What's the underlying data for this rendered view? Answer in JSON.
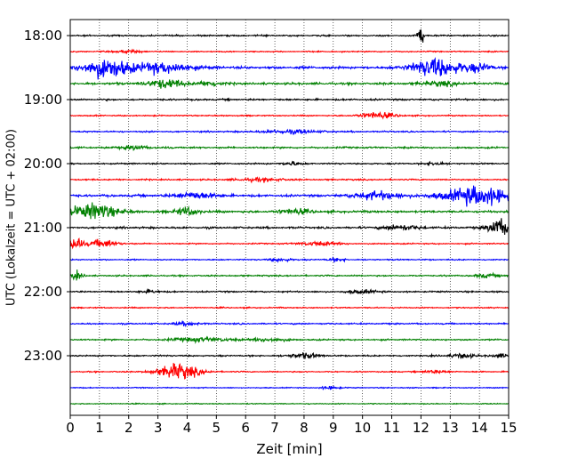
{
  "chart_data": {
    "type": "line",
    "title": "",
    "xlabel": "Zeit  [min]",
    "ylabel": "UTC (Lokalzeit = UTC + 02:00)",
    "xlim": [
      0,
      15
    ],
    "x_ticks": [
      0,
      1,
      2,
      3,
      4,
      5,
      6,
      7,
      8,
      9,
      10,
      11,
      12,
      13,
      14,
      15
    ],
    "x_tick_labels": [
      "0",
      "1",
      "2",
      "3",
      "4",
      "5",
      "6",
      "7",
      "8",
      "9",
      "10",
      "11",
      "12",
      "13",
      "14",
      "15"
    ],
    "y_ticks": [
      {
        "label": "18:00",
        "minutes": 0
      },
      {
        "label": "19:00",
        "minutes": 60
      },
      {
        "label": "20:00",
        "minutes": 120
      },
      {
        "label": "21:00",
        "minutes": 180
      },
      {
        "label": "22:00",
        "minutes": 240
      },
      {
        "label": "23:00",
        "minutes": 300
      }
    ],
    "trace_interval_minutes": 15,
    "vertical_grid": "dotted",
    "trace_colors": [
      "#000000",
      "#ff0000",
      "#0000ff",
      "#008000"
    ],
    "traces": [
      {
        "start": "18:00",
        "color": "#000000",
        "noise": 0.6,
        "events": [
          {
            "x": 12.0,
            "amp": 5.5,
            "width": 0.12
          }
        ]
      },
      {
        "start": "18:15",
        "color": "#ff0000",
        "noise": 0.5,
        "events": [
          {
            "x": 2.0,
            "amp": 1.2,
            "width": 0.4
          }
        ]
      },
      {
        "start": "18:30",
        "color": "#0000ff",
        "noise": 1.0,
        "events": [
          {
            "x": 1.2,
            "amp": 7.5,
            "width": 0.8
          },
          {
            "x": 3.2,
            "amp": 4.0,
            "width": 1.0
          },
          {
            "x": 12.5,
            "amp": 7.0,
            "width": 0.8
          },
          {
            "x": 13.9,
            "amp": 3.0,
            "width": 0.5
          }
        ]
      },
      {
        "start": "18:45",
        "color": "#008000",
        "noise": 0.9,
        "events": [
          {
            "x": 3.3,
            "amp": 3.5,
            "width": 0.6
          },
          {
            "x": 4.8,
            "amp": 2.0,
            "width": 0.4
          },
          {
            "x": 12.7,
            "amp": 1.5,
            "width": 0.6
          }
        ]
      },
      {
        "start": "19:00",
        "color": "#000000",
        "noise": 0.7,
        "events": []
      },
      {
        "start": "19:15",
        "color": "#ff0000",
        "noise": 0.5,
        "events": [
          {
            "x": 10.5,
            "amp": 2.5,
            "width": 0.6
          }
        ]
      },
      {
        "start": "19:30",
        "color": "#0000ff",
        "noise": 0.6,
        "events": [
          {
            "x": 7.5,
            "amp": 1.3,
            "width": 1.0
          }
        ]
      },
      {
        "start": "19:45",
        "color": "#008000",
        "noise": 0.7,
        "events": [
          {
            "x": 2.2,
            "amp": 1.3,
            "width": 0.5
          }
        ]
      },
      {
        "start": "20:00",
        "color": "#000000",
        "noise": 0.6,
        "events": [
          {
            "x": 7.6,
            "amp": 1.5,
            "width": 0.3
          },
          {
            "x": 12.5,
            "amp": 1.5,
            "width": 0.3
          }
        ]
      },
      {
        "start": "20:15",
        "color": "#ff0000",
        "noise": 0.6,
        "events": [
          {
            "x": 6.5,
            "amp": 1.2,
            "width": 0.8
          }
        ]
      },
      {
        "start": "20:30",
        "color": "#0000ff",
        "noise": 0.9,
        "events": [
          {
            "x": 4.3,
            "amp": 2.5,
            "width": 0.7
          },
          {
            "x": 10.5,
            "amp": 3.0,
            "width": 0.8
          },
          {
            "x": 14.0,
            "amp": 7.0,
            "width": 1.2
          }
        ]
      },
      {
        "start": "20:45",
        "color": "#008000",
        "noise": 0.9,
        "events": [
          {
            "x": 0.8,
            "amp": 6.0,
            "width": 0.8
          },
          {
            "x": 4.0,
            "amp": 3.0,
            "width": 0.4
          },
          {
            "x": 7.7,
            "amp": 2.0,
            "width": 0.5
          }
        ]
      },
      {
        "start": "21:00",
        "color": "#000000",
        "noise": 0.8,
        "events": [
          {
            "x": 11.3,
            "amp": 2.0,
            "width": 0.6
          },
          {
            "x": 14.7,
            "amp": 6.5,
            "width": 0.4
          }
        ]
      },
      {
        "start": "21:15",
        "color": "#ff0000",
        "noise": 0.5,
        "events": [
          {
            "x": 0.2,
            "amp": 5.0,
            "width": 0.2
          },
          {
            "x": 1.1,
            "amp": 3.0,
            "width": 0.5
          },
          {
            "x": 8.5,
            "amp": 1.5,
            "width": 0.7
          }
        ]
      },
      {
        "start": "21:30",
        "color": "#0000ff",
        "noise": 0.5,
        "events": [
          {
            "x": 7.2,
            "amp": 1.2,
            "width": 0.4
          },
          {
            "x": 9.1,
            "amp": 1.3,
            "width": 0.3
          }
        ]
      },
      {
        "start": "21:45",
        "color": "#008000",
        "noise": 0.6,
        "events": [
          {
            "x": 0.2,
            "amp": 3.0,
            "width": 0.2
          },
          {
            "x": 14.3,
            "amp": 1.3,
            "width": 0.4
          }
        ]
      },
      {
        "start": "22:00",
        "color": "#000000",
        "noise": 0.6,
        "events": [
          {
            "x": 2.7,
            "amp": 1.2,
            "width": 0.3
          },
          {
            "x": 10.0,
            "amp": 1.3,
            "width": 0.5
          }
        ]
      },
      {
        "start": "22:15",
        "color": "#ff0000",
        "noise": 0.5,
        "events": []
      },
      {
        "start": "22:30",
        "color": "#0000ff",
        "noise": 0.6,
        "events": [
          {
            "x": 4.0,
            "amp": 1.3,
            "width": 0.4
          }
        ]
      },
      {
        "start": "22:45",
        "color": "#008000",
        "noise": 0.6,
        "events": [
          {
            "x": 4.5,
            "amp": 1.5,
            "width": 1.0
          },
          {
            "x": 6.8,
            "amp": 1.3,
            "width": 0.6
          }
        ]
      },
      {
        "start": "23:00",
        "color": "#000000",
        "noise": 0.6,
        "events": [
          {
            "x": 8.0,
            "amp": 2.0,
            "width": 0.5
          },
          {
            "x": 13.4,
            "amp": 1.5,
            "width": 0.5
          },
          {
            "x": 14.8,
            "amp": 1.2,
            "width": 0.3
          }
        ]
      },
      {
        "start": "23:15",
        "color": "#ff0000",
        "noise": 0.5,
        "events": [
          {
            "x": 3.7,
            "amp": 6.0,
            "width": 0.7
          },
          {
            "x": 12.5,
            "amp": 1.2,
            "width": 0.4
          }
        ]
      },
      {
        "start": "23:30",
        "color": "#0000ff",
        "noise": 0.4,
        "events": [
          {
            "x": 8.9,
            "amp": 1.2,
            "width": 0.3
          }
        ]
      },
      {
        "start": "23:45",
        "color": "#008000",
        "noise": 0.4,
        "events": []
      }
    ]
  }
}
